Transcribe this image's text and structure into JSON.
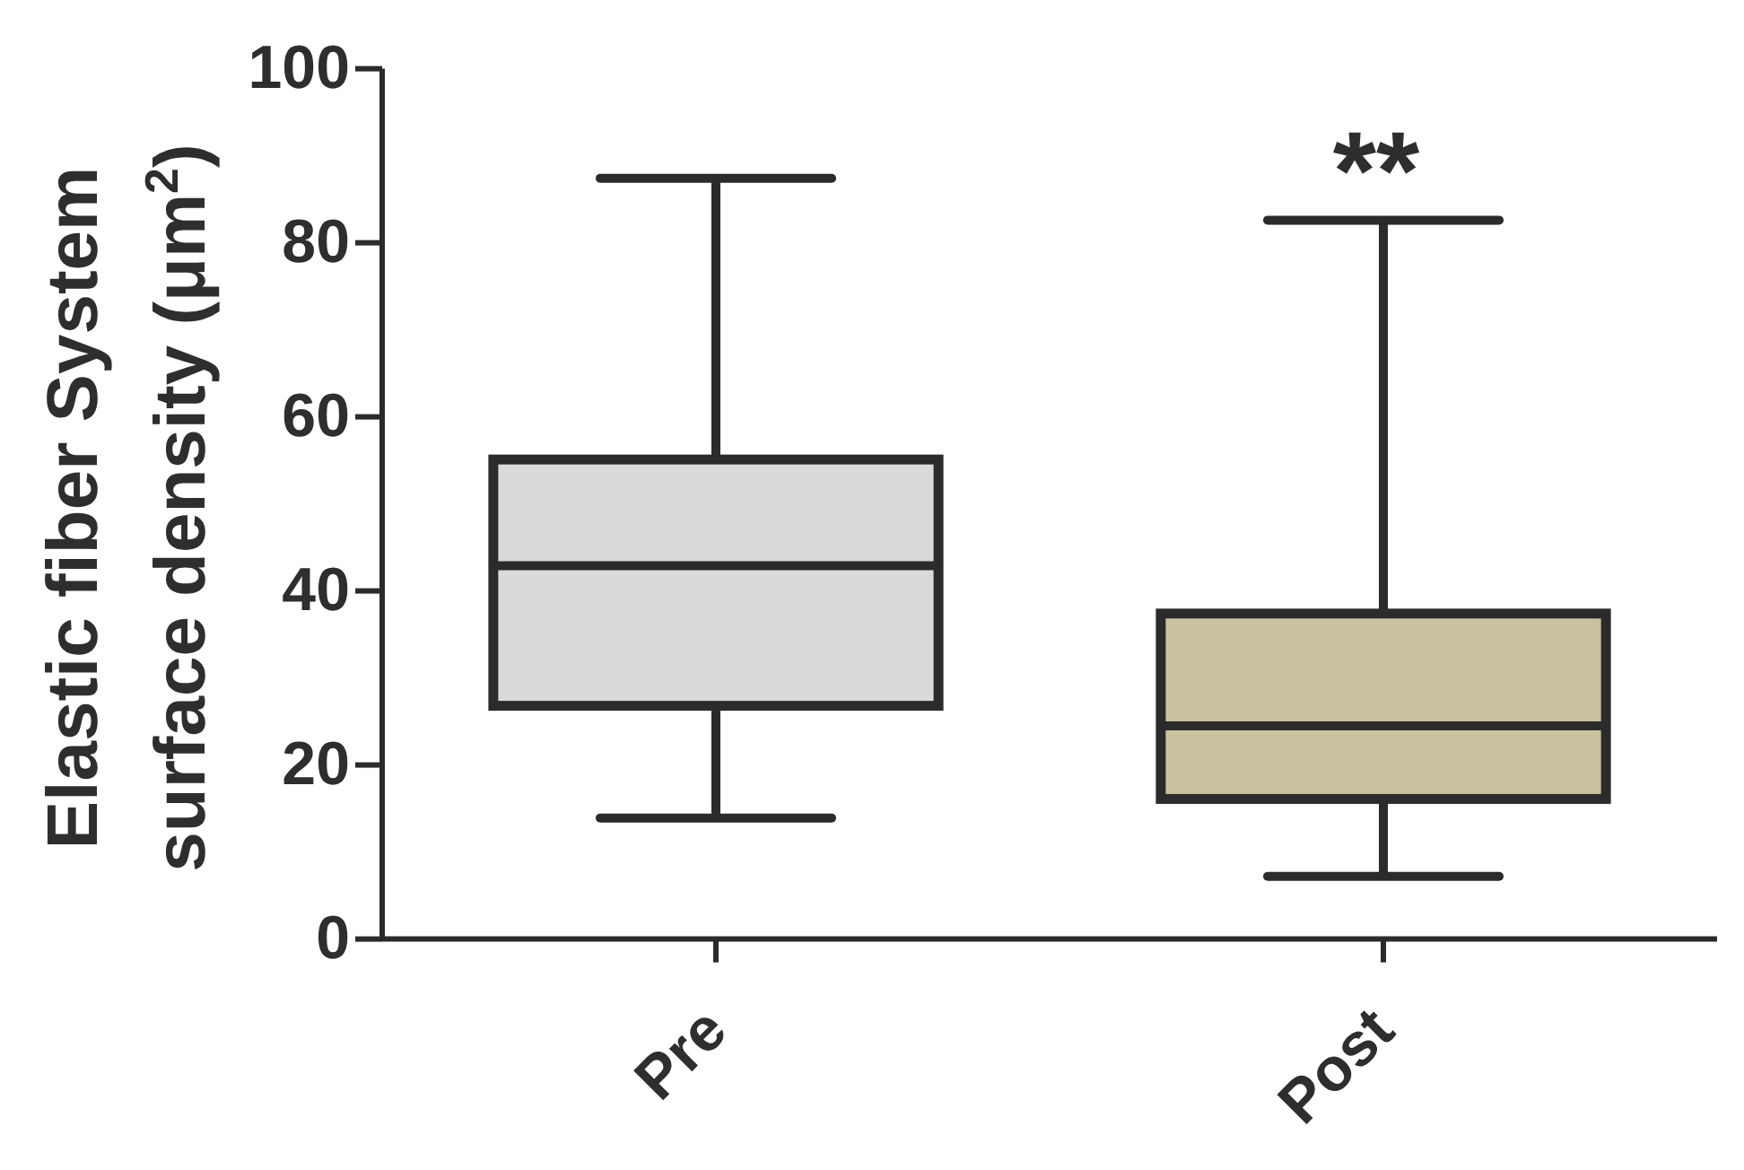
{
  "chart_data": {
    "type": "box",
    "ylabel": "Elastic fiber System\nsurface density (μm$^{2}$)",
    "categories": [
      "Pre",
      "Post"
    ],
    "boxes": [
      {
        "low": 13.9,
        "q1": 26.8,
        "median": 42.9,
        "q3": 55.1,
        "high": 87.4
      },
      {
        "low": 7.2,
        "q1": 16.1,
        "median": 24.5,
        "q3": 37.4,
        "high": 82.6
      }
    ],
    "colors": [
      "#d9dadc",
      "#c8c2a0"
    ],
    "ylim": [
      0,
      100
    ],
    "yticks": [
      0,
      20,
      40,
      60,
      80,
      100
    ],
    "annotations": [
      "**"
    ]
  }
}
